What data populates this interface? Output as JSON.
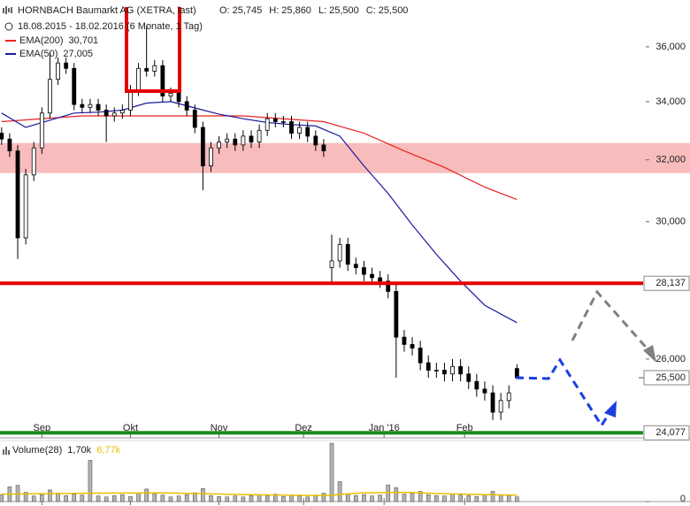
{
  "chart_data": {
    "type": "candlestick",
    "title": "HORNBACH Baumarkt AG (XETRA, last)",
    "quote": [
      {
        "name": "O:",
        "label": "25,745"
      },
      {
        "name": "H:",
        "label": "25,860"
      },
      {
        "name": "L:",
        "label": "25,500"
      },
      {
        "name": "C:",
        "label": "25,500"
      }
    ],
    "subtitle": "18.08.2015 - 18.02.2016 (6 Monate, 1 Tag)",
    "open": [
      32900,
      32700,
      32300,
      29500,
      31500,
      32400,
      33600,
      34800,
      35400,
      35200,
      33900,
      33800,
      33900,
      33700,
      33500,
      33600,
      33700,
      34400,
      35200,
      35100,
      35300,
      34200,
      34300,
      34000,
      33700,
      33100,
      31800,
      32400,
      32600,
      32700,
      32500,
      32800,
      32600,
      33000,
      33400,
      33300,
      33300,
      32900,
      33100,
      32800,
      32500,
      28600,
      28800,
      29300,
      28700,
      28600,
      28400,
      28300,
      28200,
      27900,
      26600,
      26400,
      26300,
      25900,
      25700,
      25700,
      25600,
      25800,
      25600,
      25400,
      25200,
      25100,
      24600,
      24900,
      25745
    ],
    "high": [
      33100,
      32900,
      32500,
      31700,
      32600,
      33800,
      35800,
      35600,
      35600,
      35400,
      34100,
      34100,
      34100,
      33900,
      33800,
      33900,
      34600,
      35400,
      36800,
      35500,
      35500,
      34500,
      34500,
      34200,
      33900,
      33300,
      32600,
      32800,
      32900,
      32900,
      33000,
      33000,
      33200,
      33600,
      33600,
      33500,
      33500,
      33300,
      33300,
      33000,
      32700,
      29600,
      29500,
      29500,
      28900,
      28800,
      28600,
      28500,
      28400,
      28100,
      26800,
      26600,
      26500,
      26100,
      25900,
      25900,
      26000,
      26000,
      25800,
      25600,
      25400,
      25300,
      25100,
      25300,
      25860
    ],
    "low": [
      32500,
      32100,
      28860,
      29300,
      31300,
      32200,
      33400,
      34600,
      35000,
      33700,
      33600,
      33600,
      33500,
      32600,
      33300,
      33400,
      33500,
      34200,
      34900,
      34900,
      34000,
      34000,
      33800,
      33500,
      32900,
      31000,
      31600,
      32200,
      32400,
      32300,
      32300,
      32400,
      32400,
      32800,
      33100,
      33100,
      32700,
      32700,
      32600,
      32300,
      32100,
      28100,
      28600,
      28500,
      28400,
      28200,
      28100,
      28000,
      27700,
      25500,
      26200,
      26100,
      25700,
      25500,
      25500,
      25400,
      25400,
      25400,
      25200,
      25000,
      24900,
      24400,
      24400,
      24700,
      25500
    ],
    "close": [
      32700,
      32300,
      29500,
      31500,
      32400,
      33600,
      34800,
      35400,
      35200,
      33900,
      33800,
      33900,
      33700,
      33500,
      33600,
      33700,
      34400,
      35200,
      35100,
      35300,
      34200,
      34300,
      34000,
      33700,
      33100,
      31800,
      32400,
      32600,
      32700,
      32500,
      32800,
      32600,
      33000,
      33400,
      33300,
      33300,
      32900,
      33100,
      32800,
      32500,
      32300,
      28800,
      29300,
      28700,
      28600,
      28400,
      28300,
      28200,
      27900,
      26600,
      26400,
      26300,
      25900,
      25700,
      25700,
      25600,
      25800,
      25600,
      25400,
      25200,
      25100,
      24600,
      24900,
      25100,
      25500
    ],
    "up_color": "#ffffff",
    "down_color": "#000000",
    "series": [
      {
        "name": "EMA(200)",
        "value_label": "30,701",
        "color": "#e8231f",
        "x": [
          0,
          10,
          20,
          30,
          40,
          45,
          50,
          55,
          60,
          64
        ],
        "values": [
          33300,
          33500,
          33500,
          33500,
          33300,
          32900,
          32300,
          31750,
          31100,
          30701
        ]
      },
      {
        "name": "EMA(50)",
        "value_label": "27,005",
        "color": "#1a1aa0",
        "x": [
          0,
          3,
          6,
          9,
          12,
          15,
          18,
          21,
          24,
          27,
          30,
          33,
          36,
          39,
          42,
          45,
          48,
          51,
          54,
          57,
          60,
          64
        ],
        "values": [
          33600,
          33100,
          33350,
          33600,
          33630,
          33700,
          33950,
          34000,
          33780,
          33560,
          33400,
          33270,
          33200,
          33150,
          32800,
          31800,
          30900,
          29900,
          29000,
          28200,
          27500,
          27005
        ]
      }
    ],
    "ylim": [
      23950,
      37800
    ],
    "log_scale": true,
    "yticks": [
      {
        "value": 26000,
        "label": "26,000"
      },
      {
        "value": 30000,
        "label": "30,000"
      },
      {
        "value": 32000,
        "label": "32,000"
      },
      {
        "value": 34000,
        "label": "34,000"
      },
      {
        "value": 36000,
        "label": "36,000"
      }
    ],
    "xlim": [
      -0.2,
      80
    ],
    "xticks": [
      {
        "value": 5,
        "label": "Sep"
      },
      {
        "value": 16,
        "label": "Okt"
      },
      {
        "value": 27,
        "label": "Nov"
      },
      {
        "value": 37.5,
        "label": "Dez"
      },
      {
        "value": 47.5,
        "label": "Jan '16"
      },
      {
        "value": 57.5,
        "label": "Feb"
      }
    ],
    "zone": {
      "from": 31560,
      "to": 32565,
      "color": "#f8bcbc"
    },
    "levels": [
      {
        "value": 28137,
        "label": "28,137",
        "color": "#e40000"
      },
      {
        "value": 24077,
        "label": "24,077",
        "color": "#1a8a1a"
      }
    ],
    "last": {
      "value": 25500,
      "label": "25,500"
    },
    "volume": {
      "title": "Volume(28)",
      "labels": [
        "1,70k",
        "6,77k"
      ],
      "color": "#b4b4b4",
      "values": [
        1.5,
        3.2,
        3.5,
        2.0,
        1.2,
        1.5,
        2.5,
        1.8,
        1.3,
        1.6,
        1.4,
        8.9,
        1.2,
        1.0,
        1.3,
        1.5,
        1.1,
        1.8,
        2.7,
        1.6,
        1.4,
        1.0,
        1.2,
        1.5,
        1.9,
        2.8,
        1.3,
        1.1,
        1.0,
        1.2,
        1.0,
        1.3,
        1.4,
        1.2,
        1.6,
        1.1,
        1.3,
        1.2,
        1.0,
        1.4,
        1.8,
        12.6,
        4.3,
        1.6,
        1.3,
        1.5,
        1.2,
        1.4,
        3.6,
        3.0,
        1.6,
        1.8,
        2.2,
        1.5,
        1.3,
        1.2,
        1.6,
        1.4,
        1.3,
        1.1,
        1.5,
        2.2,
        1.4,
        1.3,
        1.0
      ],
      "ylim": [
        0,
        12.8
      ],
      "yticks": [
        0
      ],
      "ma": {
        "color": "#e8c000",
        "x": [
          0,
          10,
          20,
          30,
          40,
          45,
          50,
          55,
          60,
          64
        ],
        "values": [
          1.6,
          1.8,
          1.9,
          1.5,
          1.3,
          1.9,
          2.0,
          1.7,
          1.5,
          1.4
        ]
      }
    }
  }
}
